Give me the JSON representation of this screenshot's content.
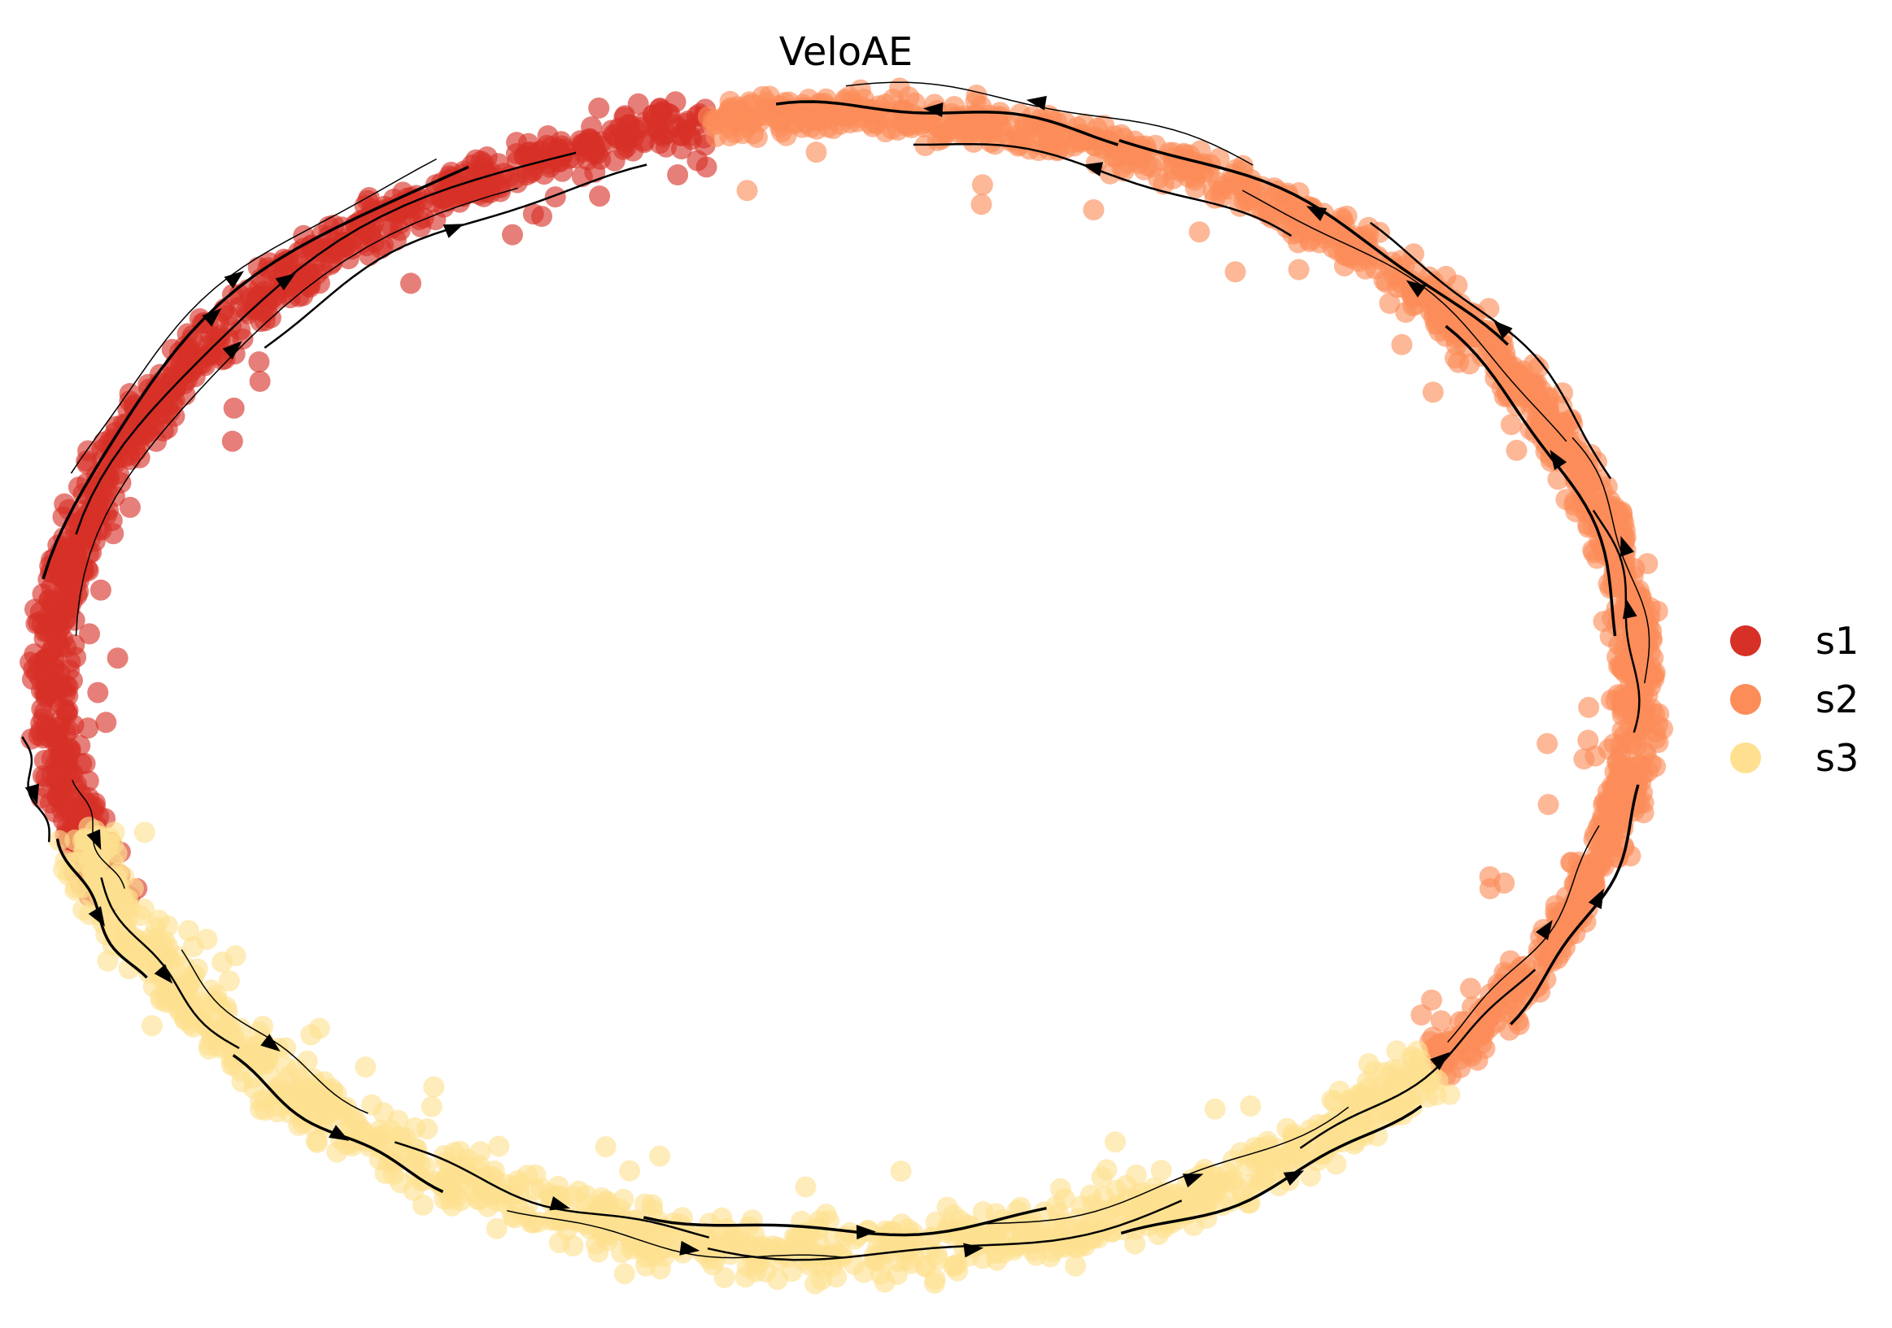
{
  "chart_data": {
    "type": "scatter",
    "title": "VeloAE",
    "xlabel": "",
    "ylabel": "",
    "axes_visible": false,
    "grid": false,
    "legend_placement": "right",
    "overlay": "velocity-streamlines",
    "series": [
      {
        "name": "s1",
        "color": "#d73027",
        "arc_deg": [
          100,
          203
        ]
      },
      {
        "name": "s2",
        "color": "#fc8d59",
        "arc_deg": [
          -42,
          100
        ]
      },
      {
        "name": "s3",
        "color": "#fee090",
        "arc_deg": [
          195,
          318
        ]
      }
    ]
  }
}
